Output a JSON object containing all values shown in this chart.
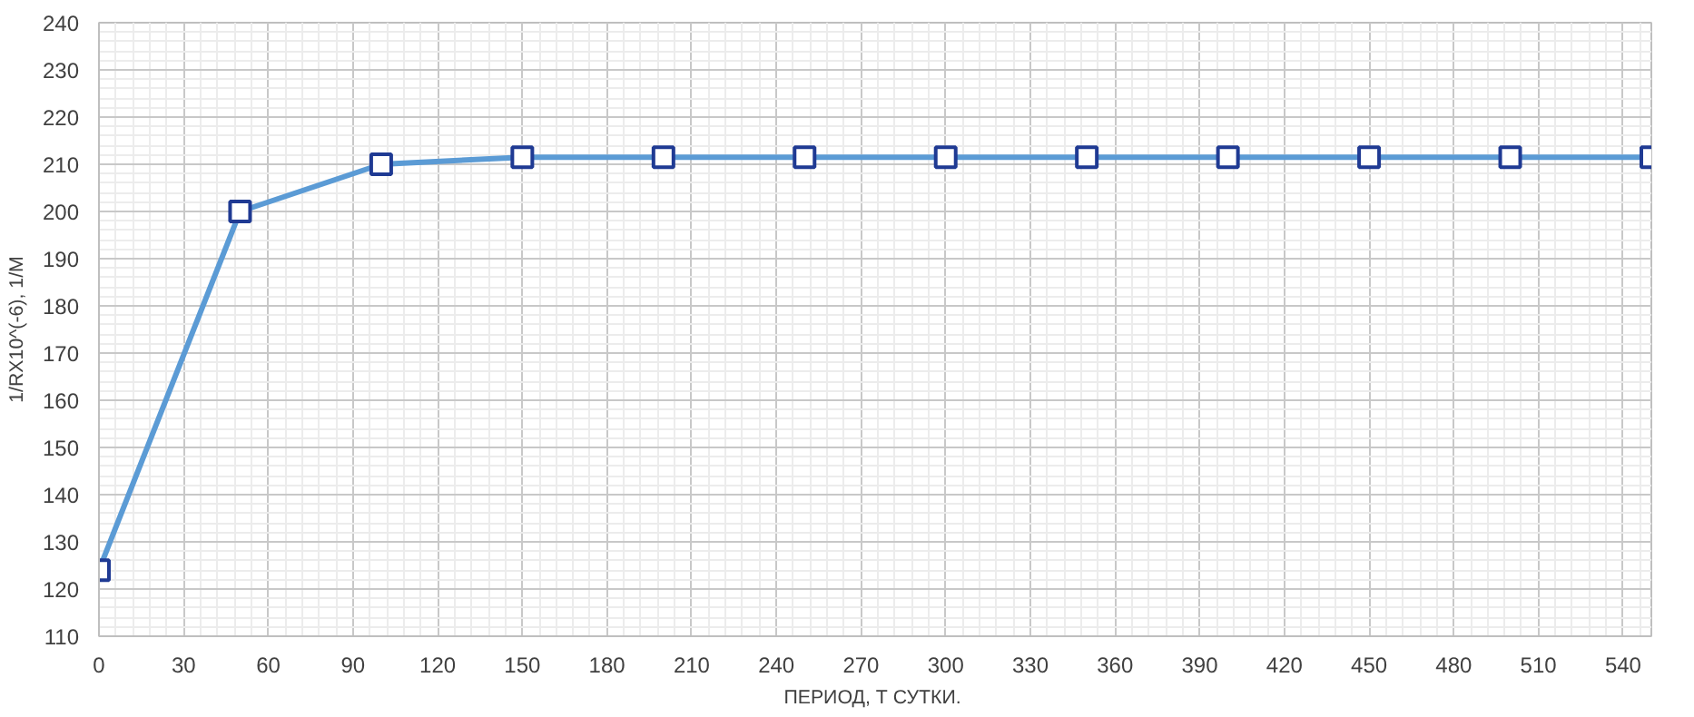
{
  "chart_data": {
    "type": "line",
    "xlabel": "ПЕРИОД,  Т СУТКИ.",
    "ylabel": "1/RX10^(-6), 1/M",
    "x": [
      0,
      50,
      100,
      150,
      200,
      250,
      300,
      350,
      400,
      450,
      500,
      550
    ],
    "series": [
      {
        "color": "#5b9bd5",
        "values": [
          124,
          200,
          210,
          211.5,
          211.5,
          211.5,
          211.5,
          211.5,
          211.5,
          211.5,
          211.5,
          211.5
        ]
      }
    ],
    "xlim": [
      0,
      550
    ],
    "xticks": [
      0,
      30,
      60,
      90,
      120,
      150,
      180,
      210,
      240,
      270,
      300,
      330,
      360,
      390,
      420,
      450,
      480,
      510,
      540
    ],
    "ylim": [
      110,
      240
    ],
    "yticks": [
      110,
      120,
      130,
      140,
      150,
      160,
      170,
      180,
      190,
      200,
      210,
      220,
      230,
      240
    ],
    "grid": true,
    "marker": "square",
    "line_style": "solid"
  }
}
